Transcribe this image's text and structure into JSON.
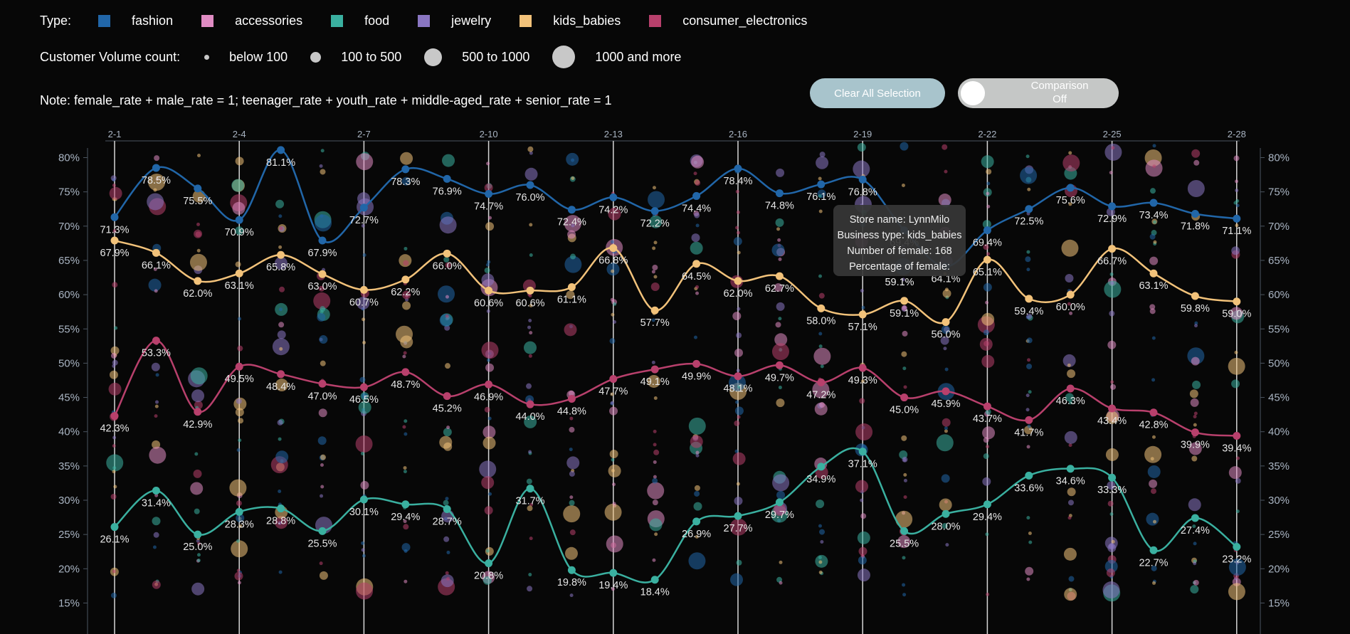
{
  "legend": {
    "type_label": "Type:",
    "types": [
      {
        "name": "fashion",
        "color": "#2166a8"
      },
      {
        "name": "accessories",
        "color": "#e08cc3"
      },
      {
        "name": "food",
        "color": "#3ab0a0"
      },
      {
        "name": "jewelry",
        "color": "#8a76c2"
      },
      {
        "name": "kids_babies",
        "color": "#f2c27a"
      },
      {
        "name": "consumer_electronics",
        "color": "#b8406c"
      }
    ],
    "volume_label": "Customer Volume count:",
    "volumes": [
      {
        "name": "below 100",
        "size": 1
      },
      {
        "name": "100 to 500",
        "size": 2
      },
      {
        "name": "500 to 1000",
        "size": 3
      },
      {
        "name": "1000 and more",
        "size": 4
      }
    ]
  },
  "note": "Note: female_rate + male_rate = 1; teenager_rate + youth_rate + middle-aged_rate + senior_rate = 1",
  "buttons": {
    "clear_all": "Clear All Selection",
    "comparison_title": "Comparison",
    "comparison_state": "Off"
  },
  "tooltip": {
    "store": "Store name: LynnMilo",
    "business": "Business type: kids_babies",
    "number": "Number of female: 168",
    "percentage": "Percentage of female: 59.1%"
  },
  "chart_data": {
    "type": "line",
    "x_tick_labels": [
      "2-1",
      "2-4",
      "2-7",
      "2-10",
      "2-13",
      "2-16",
      "2-19",
      "2-22",
      "2-25",
      "2-28"
    ],
    "x": [
      "2-1",
      "2-2",
      "2-3",
      "2-4",
      "2-5",
      "2-6",
      "2-7",
      "2-8",
      "2-9",
      "2-10",
      "2-11",
      "2-12",
      "2-13",
      "2-14",
      "2-15",
      "2-16",
      "2-17",
      "2-18",
      "2-19",
      "2-20",
      "2-21",
      "2-22",
      "2-23",
      "2-24",
      "2-25",
      "2-26",
      "2-27",
      "2-28"
    ],
    "ylim": [
      13,
      82
    ],
    "y_ticks": [
      "15%",
      "20%",
      "25%",
      "30%",
      "35%",
      "40%",
      "45%",
      "50%",
      "55%",
      "60%",
      "65%",
      "70%",
      "75%",
      "80%"
    ],
    "series": [
      {
        "name": "fashion",
        "color": "#2166a8",
        "values": [
          71.3,
          78.5,
          75.5,
          70.9,
          81.1,
          67.9,
          72.7,
          78.3,
          76.9,
          74.7,
          76.0,
          72.4,
          74.2,
          72.2,
          74.4,
          78.4,
          74.8,
          76.1,
          76.8,
          69.4,
          64.1,
          69.4,
          72.5,
          75.6,
          72.9,
          73.4,
          71.8,
          71.1
        ]
      },
      {
        "name": "kids_babies",
        "color": "#f2c27a",
        "values": [
          67.9,
          66.1,
          62.0,
          63.1,
          65.8,
          63.0,
          60.7,
          62.2,
          66.0,
          60.6,
          60.6,
          61.1,
          66.8,
          57.7,
          64.5,
          62.0,
          62.7,
          58.0,
          57.1,
          59.1,
          56.0,
          65.1,
          59.4,
          60.0,
          66.7,
          63.1,
          59.8,
          59.0
        ]
      },
      {
        "name": "consumer_electronics",
        "color": "#b8406c",
        "values": [
          42.3,
          53.3,
          42.9,
          49.5,
          48.4,
          47.0,
          46.5,
          48.7,
          45.2,
          46.9,
          44.0,
          44.8,
          47.7,
          49.1,
          49.9,
          48.1,
          49.7,
          47.2,
          49.3,
          45.0,
          45.9,
          43.7,
          41.7,
          46.3,
          43.4,
          42.8,
          39.9,
          39.4
        ]
      },
      {
        "name": "food",
        "color": "#3ab0a0",
        "values": [
          26.1,
          31.4,
          25.0,
          28.3,
          28.8,
          25.5,
          30.1,
          29.4,
          28.7,
          20.8,
          31.7,
          19.8,
          19.4,
          18.4,
          26.9,
          27.7,
          29.7,
          34.9,
          37.1,
          25.5,
          28.0,
          29.4,
          33.6,
          34.6,
          33.3,
          22.7,
          27.4,
          23.2
        ]
      }
    ]
  }
}
